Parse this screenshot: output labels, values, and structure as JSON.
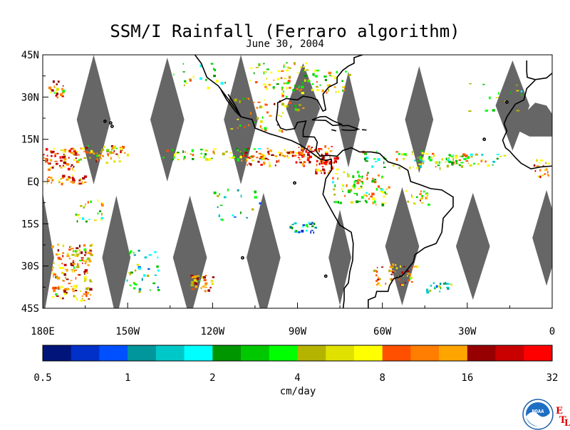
{
  "title": "SSM/I Rainfall (Ferraro algorithm)",
  "subtitle": "June 30, 2004",
  "map": {
    "lon_range": [
      -180,
      0
    ],
    "lat_range": [
      -45,
      45
    ],
    "lat_ticks": [
      {
        "value": 45,
        "label": "45N"
      },
      {
        "value": 30,
        "label": "30N"
      },
      {
        "value": 15,
        "label": "15N"
      },
      {
        "value": 0,
        "label": "EQ"
      },
      {
        "value": -15,
        "label": "15S"
      },
      {
        "value": -30,
        "label": "30S"
      },
      {
        "value": -45,
        "label": "45S"
      }
    ],
    "lon_ticks": [
      {
        "value": -180,
        "label": "180E"
      },
      {
        "value": -150,
        "label": "150W"
      },
      {
        "value": -120,
        "label": "120W"
      },
      {
        "value": -90,
        "label": "90W"
      },
      {
        "value": -60,
        "label": "60W"
      },
      {
        "value": -30,
        "label": "30W"
      },
      {
        "value": 0,
        "label": "0"
      }
    ],
    "no_data_color": "#666666",
    "coast_color": "#000000"
  },
  "colorbar": {
    "unit_label": "cm/day",
    "tick_labels": [
      "0.5",
      "1",
      "2",
      "4",
      "8",
      "16",
      "32"
    ],
    "colors": [
      "#00147a",
      "#0030c8",
      "#0050ff",
      "#00969b",
      "#00c8c8",
      "#00ffff",
      "#009600",
      "#00c800",
      "#00ff00",
      "#b4b400",
      "#e1e100",
      "#ffff00",
      "#ff5000",
      "#ff7d00",
      "#ffa500",
      "#960000",
      "#c80000",
      "#ff0000"
    ]
  },
  "logo": {
    "text": "NOAA",
    "e": "E",
    "t": "T",
    "l": "L"
  }
}
